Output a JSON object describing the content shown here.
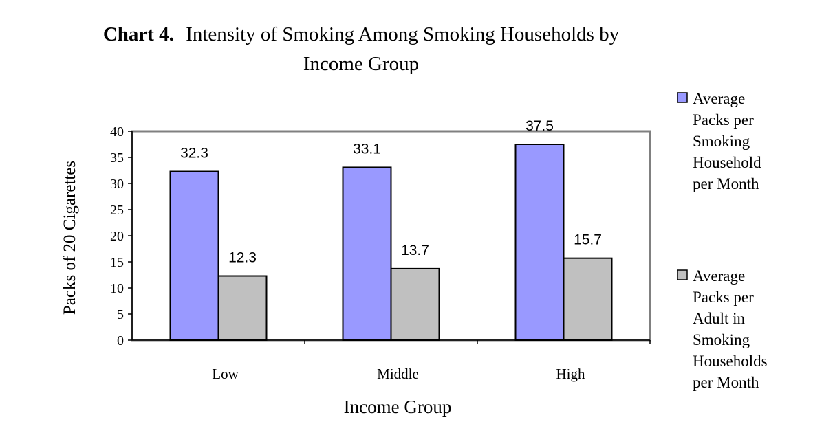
{
  "chart_data": {
    "type": "bar",
    "title_prefix": "Chart 4.",
    "title": "Intensity of Smoking Among Smoking Households by Income Group",
    "title_line1": "Intensity of Smoking Among Smoking Households by",
    "title_line2": "Income Group",
    "xlabel": "Income Group",
    "ylabel": "Packs of 20 Cigarettes",
    "ylim": [
      0,
      40
    ],
    "yticks": [
      0,
      5,
      10,
      15,
      20,
      25,
      30,
      35,
      40
    ],
    "categories": [
      "Low",
      "Middle",
      "High"
    ],
    "series": [
      {
        "name": "Average Packs per Smoking Household per Month",
        "legend_lines": [
          "Average",
          "Packs per",
          "Smoking",
          "Household",
          "per Month"
        ],
        "values": [
          32.3,
          33.1,
          37.5
        ],
        "labels": [
          "32.3",
          "33.1",
          "37.5"
        ],
        "color": "#9999ff"
      },
      {
        "name": "Average Packs per Adult in Smoking Households per Month",
        "legend_lines": [
          "Average",
          "Packs per",
          "Adult in",
          "Smoking",
          "Households",
          "per Month"
        ],
        "values": [
          12.3,
          13.7,
          15.7
        ],
        "labels": [
          "12.3",
          "13.7",
          "15.7"
        ],
        "color": "#c0c0c0"
      }
    ],
    "grid": false,
    "legend_position": "right"
  }
}
